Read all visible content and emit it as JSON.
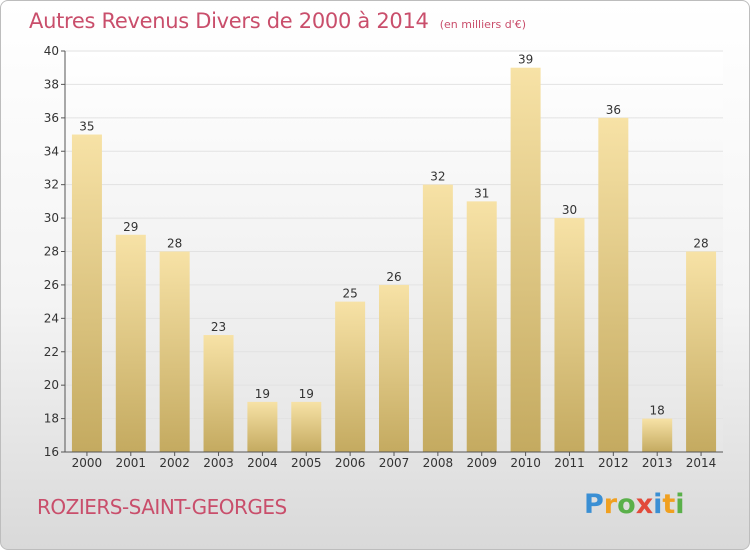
{
  "chart_data": {
    "type": "bar",
    "title": "Autres Revenus Divers de 2000 à 2014",
    "subtitle": "(en milliers d'€)",
    "categories": [
      "2000",
      "2001",
      "2002",
      "2003",
      "2004",
      "2005",
      "2006",
      "2007",
      "2008",
      "2009",
      "2010",
      "2011",
      "2012",
      "2013",
      "2014"
    ],
    "values": [
      35,
      29,
      28,
      23,
      19,
      19,
      25,
      26,
      32,
      31,
      39,
      30,
      36,
      18,
      28
    ],
    "ylim": [
      16,
      40
    ],
    "yticks": [
      "16",
      "18",
      "20",
      "22",
      "24",
      "26",
      "28",
      "30",
      "32",
      "34",
      "36",
      "38",
      "40"
    ],
    "grid": true,
    "bar_color_light": "#f7e2a6",
    "bar_color_dark": "#c4aa60",
    "text_color": "#c94e6b"
  },
  "location": "ROZIERS-SAINT-GEORGES",
  "logo": {
    "text": "Proxiti",
    "letters": [
      "P",
      "r",
      "o",
      "x",
      "i",
      "t",
      "i"
    ],
    "colors": [
      "#3a8fd4",
      "#f0a020",
      "#5ab04a",
      "#e24a3a",
      "#3a8fd4",
      "#f0a020",
      "#5ab04a"
    ]
  }
}
